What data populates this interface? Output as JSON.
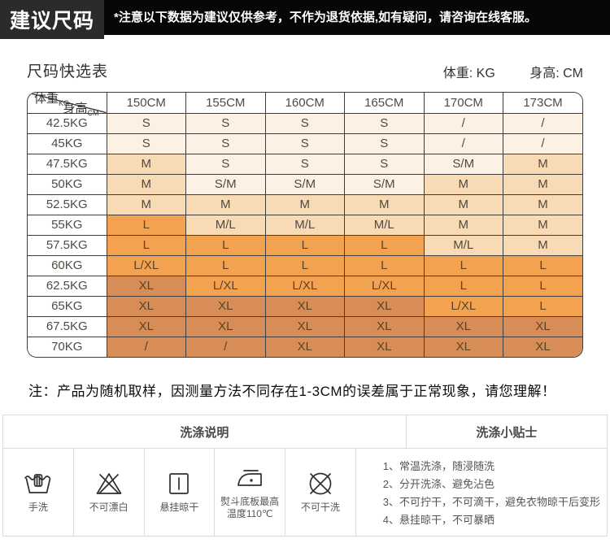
{
  "banner": {
    "title": "建议尺码",
    "note": "*注意以下数据为建议仅供参考，不作为退货依据,如有疑问，请咨询在线客服。"
  },
  "size_section": {
    "title": "尺码快选表",
    "unit_weight": "体重: KG",
    "unit_height": "身高: CM",
    "corner": {
      "top": "身高",
      "top_sub": "CM",
      "bottom": "体重",
      "bottom_sub": "KG"
    },
    "columns": [
      "150CM",
      "155CM",
      "160CM",
      "165CM",
      "170CM",
      "173CM"
    ],
    "rows": [
      {
        "weight": "42.5KG",
        "cells": [
          [
            "S",
            "s"
          ],
          [
            "S",
            "s"
          ],
          [
            "S",
            "s"
          ],
          [
            "S",
            "s"
          ],
          [
            "/",
            "s"
          ],
          [
            "/",
            "s"
          ]
        ]
      },
      {
        "weight": "45KG",
        "cells": [
          [
            "S",
            "s"
          ],
          [
            "S",
            "s"
          ],
          [
            "S",
            "s"
          ],
          [
            "S",
            "s"
          ],
          [
            "/",
            "s"
          ],
          [
            "/",
            "s"
          ]
        ]
      },
      {
        "weight": "47.5KG",
        "cells": [
          [
            "M",
            "m"
          ],
          [
            "S",
            "s"
          ],
          [
            "S",
            "s"
          ],
          [
            "S",
            "s"
          ],
          [
            "S/M",
            "s"
          ],
          [
            "M",
            "m"
          ]
        ]
      },
      {
        "weight": "50KG",
        "cells": [
          [
            "M",
            "m"
          ],
          [
            "S/M",
            "s"
          ],
          [
            "S/M",
            "s"
          ],
          [
            "S/M",
            "s"
          ],
          [
            "M",
            "m"
          ],
          [
            "M",
            "m"
          ]
        ]
      },
      {
        "weight": "52.5KG",
        "cells": [
          [
            "M",
            "m"
          ],
          [
            "M",
            "m"
          ],
          [
            "M",
            "m"
          ],
          [
            "M",
            "m"
          ],
          [
            "M",
            "m"
          ],
          [
            "M",
            "m"
          ]
        ]
      },
      {
        "weight": "55KG",
        "cells": [
          [
            "L",
            "l"
          ],
          [
            "M/L",
            "m"
          ],
          [
            "M/L",
            "m"
          ],
          [
            "M/L",
            "m"
          ],
          [
            "M",
            "m"
          ],
          [
            "M",
            "m"
          ]
        ]
      },
      {
        "weight": "57.5KG",
        "cells": [
          [
            "L",
            "l"
          ],
          [
            "L",
            "l"
          ],
          [
            "L",
            "l"
          ],
          [
            "L",
            "l"
          ],
          [
            "M/L",
            "m"
          ],
          [
            "M",
            "m"
          ]
        ]
      },
      {
        "weight": "60KG",
        "cells": [
          [
            "L/XL",
            "l"
          ],
          [
            "L",
            "l"
          ],
          [
            "L",
            "l"
          ],
          [
            "L",
            "l"
          ],
          [
            "L",
            "l"
          ],
          [
            "L",
            "l"
          ]
        ]
      },
      {
        "weight": "62.5KG",
        "cells": [
          [
            "XL",
            "xl"
          ],
          [
            "L/XL",
            "l"
          ],
          [
            "L/XL",
            "l"
          ],
          [
            "L/XL",
            "l"
          ],
          [
            "L",
            "l"
          ],
          [
            "L",
            "l"
          ]
        ]
      },
      {
        "weight": "65KG",
        "cells": [
          [
            "XL",
            "xl"
          ],
          [
            "XL",
            "xl"
          ],
          [
            "XL",
            "xl"
          ],
          [
            "XL",
            "xl"
          ],
          [
            "L/XL",
            "l"
          ],
          [
            "L",
            "l"
          ]
        ]
      },
      {
        "weight": "67.5KG",
        "cells": [
          [
            "XL",
            "xl"
          ],
          [
            "XL",
            "xl"
          ],
          [
            "XL",
            "xl"
          ],
          [
            "XL",
            "xl"
          ],
          [
            "XL",
            "xl"
          ],
          [
            "XL",
            "xl"
          ]
        ]
      },
      {
        "weight": "70KG",
        "cells": [
          [
            "/",
            "xl"
          ],
          [
            "/",
            "xl"
          ],
          [
            "XL",
            "xl"
          ],
          [
            "XL",
            "xl"
          ],
          [
            "XL",
            "xl"
          ],
          [
            "XL",
            "xl"
          ]
        ]
      }
    ]
  },
  "sample_note": "注：产品为随机取样，因测量方法不同存在1-3CM的误差属于正常现象，请您理解！",
  "care": {
    "left_title": "洗涤说明",
    "right_title": "洗涤小贴士",
    "symbols": [
      {
        "icon": "hand-wash-icon",
        "label": "手洗"
      },
      {
        "icon": "no-bleach-icon",
        "label": "不可漂白"
      },
      {
        "icon": "hang-dry-icon",
        "label": "悬挂晾干"
      },
      {
        "icon": "iron-max-110-icon",
        "label": "熨斗底板最高温度110℃"
      },
      {
        "icon": "no-dry-clean-icon",
        "label": "不可干洗"
      }
    ],
    "tips": [
      "1、常温洗涤，随浸随洗",
      "2、分开洗涤、避免沾色",
      "3、不可拧干，不可滴干，避免衣物晾干后变形",
      "4、悬挂晾干，不可暴晒"
    ]
  },
  "colors": {
    "s": "#fcf1e3",
    "m": "#f8dab4",
    "l": "#f3a350",
    "xl": "#d78d55",
    "banner_bg": "#070707",
    "banner_title_bg": "#2c2b29",
    "table_border": "#3e3e3e"
  }
}
